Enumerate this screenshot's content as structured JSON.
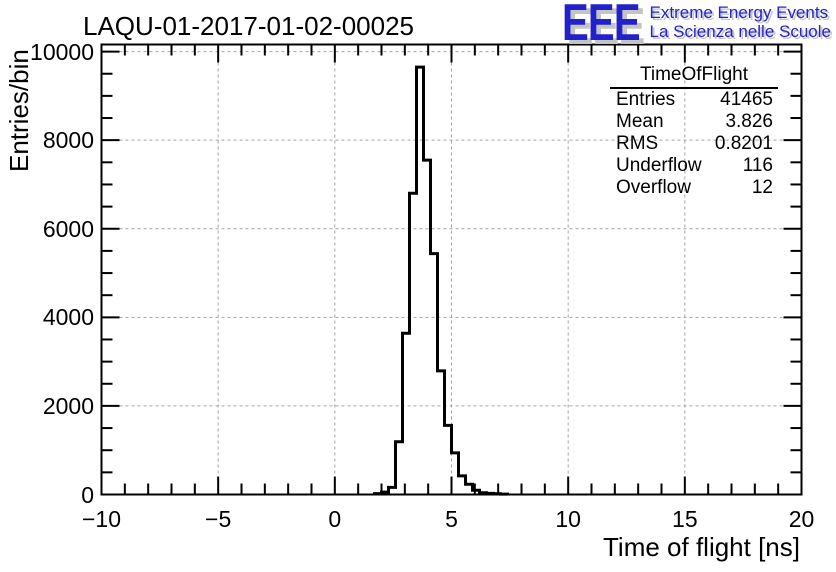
{
  "header": {
    "title": "LAQU-01-2017-01-02-00025",
    "logo": {
      "acronym": "EEE",
      "line1": "Extreme Energy Events",
      "line2": "La Scienza nelle Scuole",
      "color": "#2222cc",
      "shadow_color": "#c4c4c4"
    }
  },
  "stats_box": {
    "title": "TimeOfFlight",
    "rows": [
      {
        "label": "Entries",
        "value": "41465"
      },
      {
        "label": "Mean",
        "value": "3.826"
      },
      {
        "label": "RMS",
        "value": "0.8201"
      },
      {
        "label": "Underflow",
        "value": "116"
      },
      {
        "label": "Overflow",
        "value": "12"
      }
    ]
  },
  "chart_data": {
    "type": "bar",
    "style": "root-step-histogram",
    "title": "LAQU-01-2017-01-02-00025",
    "xlabel": "Time of flight [ns]",
    "ylabel": "Entries/bin",
    "xlim": [
      -10,
      20
    ],
    "ylim": [
      0,
      10160
    ],
    "grid": true,
    "grid_color": "#a2a2a2",
    "line_color": "#000000",
    "x_major_ticks": [
      -10,
      -5,
      0,
      5,
      10,
      15,
      20
    ],
    "xticklabels": [
      "−10",
      "−5",
      "0",
      "5",
      "10",
      "15",
      "20"
    ],
    "x_minor_step": 1,
    "y_major_ticks": [
      0,
      2000,
      4000,
      6000,
      8000,
      10000
    ],
    "yticklabels": [
      "0",
      "2000",
      "4000",
      "6000",
      "8000",
      "10000"
    ],
    "y_minor_step": 500,
    "bin_width": 0.3,
    "first_bin_x": 1.7,
    "counts": [
      20,
      55,
      160,
      1190,
      3640,
      6800,
      9650,
      7550,
      5440,
      2790,
      1560,
      940,
      420,
      230,
      95,
      40,
      25,
      15,
      8
    ]
  }
}
